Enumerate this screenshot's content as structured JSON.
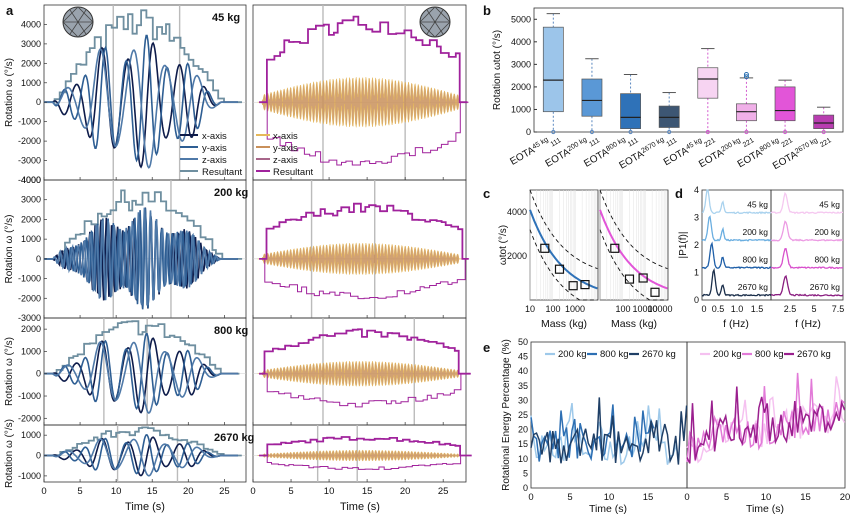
{
  "colors": {
    "x_axis": "#0d1b4a",
    "y_axis": "#2e5e93",
    "z_axis": "#4f79a8",
    "resultant": "#6f8fa0",
    "mx": "#e6b85a",
    "my": "#c9905a",
    "mz": "#a8668a",
    "mres": "#a0229c",
    "blue_box": [
      "#9cc5ea",
      "#5a98d6",
      "#2f72b8",
      "#3d5673"
    ],
    "pink_box": [
      "#f7d4f2",
      "#f0b0e8",
      "#e255d8",
      "#b83db0"
    ],
    "e_left": [
      "#9ec9ea",
      "#2d6fb3",
      "#1f3f66"
    ],
    "e_right": [
      "#f5c1f0",
      "#e27ad8",
      "#9a1f8e"
    ]
  },
  "panels": {
    "a": {
      "letter": "a",
      "masses": [
        "45 kg",
        "200 kg",
        "800 kg",
        "2670 kg"
      ],
      "ylabel": "Rotation ω (°/s)",
      "xlabel": "Time (s)"
    },
    "b": {
      "letter": "b",
      "ylabel": "Rotation ωtot (°/s)"
    },
    "c": {
      "letter": "c",
      "ylabel": "ωtot (°/s)",
      "xlabel": "Mass (kg)"
    },
    "d": {
      "letter": "d",
      "ylabel": "|P1(f)|",
      "xlabel": "f (Hz)"
    },
    "e": {
      "letter": "e",
      "ylabel": "Rotational Energy Percentage (%)",
      "xlabel": "Time (s)"
    }
  },
  "legend_a_left": [
    "x-axis",
    "y-axis",
    "z-axis",
    "Resultant"
  ],
  "legend_a_right": [
    "x-axis",
    "y-axis",
    "z-axis",
    "Resultant"
  ],
  "legend_e": [
    "200 kg",
    "800 kg",
    "2670 kg"
  ],
  "chart_data": [
    {
      "id": "a-time-series",
      "type": "line",
      "xlim": [
        0,
        28
      ],
      "x_ticks": [
        0,
        5,
        10,
        15,
        20,
        25
      ],
      "rows": [
        {
          "mass": "45 kg",
          "ylim": [
            -4000,
            5000
          ],
          "y_ticks": [
            -4000,
            -3000,
            -2000,
            -1000,
            0,
            1000,
            2000,
            3000,
            4000
          ],
          "left_vlines": [
            9.6,
            18.8
          ],
          "right_vlines": [
            9.2,
            20
          ],
          "peak_resultant_left": 4400,
          "peak_resultant_right": 4300
        },
        {
          "mass": "200 kg",
          "ylim": [
            -3000,
            4000
          ],
          "y_ticks": [
            -3000,
            -2000,
            -1000,
            0,
            1000,
            2000,
            3000,
            4000
          ],
          "left_vlines": [
            9.6,
            17.6
          ],
          "right_vlines": [
            7.7,
            16
          ],
          "peak_resultant_left": 3300,
          "peak_resultant_right": 2700
        },
        {
          "mass": "800 kg",
          "ylim": [
            -2300,
            2500
          ],
          "y_ticks": [
            -2000,
            -1000,
            0,
            1000,
            2000
          ],
          "left_vlines": [
            8.3,
            14.3
          ],
          "right_vlines": [
            9.2,
            21.2
          ],
          "peak_resultant_left": 2300,
          "peak_resultant_right": 1900
        },
        {
          "mass": "2670 kg",
          "ylim": [
            -1300,
            1500
          ],
          "y_ticks": [
            -1000,
            0,
            1000
          ],
          "left_vlines": [
            10.2,
            18.5
          ],
          "right_vlines": [
            8.5,
            13.7
          ],
          "peak_resultant_left": 1300,
          "peak_resultant_right": 900
        }
      ]
    },
    {
      "id": "b-boxplot",
      "type": "box",
      "ylim": [
        0,
        5500
      ],
      "y_ticks": [
        0,
        1000,
        2000,
        3000,
        4000,
        5000
      ],
      "categories": [
        "EOTA 45 kg 111",
        "EOTA 200 kg 111",
        "EOTA 800 kg 111",
        "EOTA 2670 kg 111",
        "EOTA 45 kg 221",
        "EOTA 200 kg 221",
        "EOTA 800 kg 221",
        "EOTA 2670 kg 221"
      ],
      "tick_base": "EOTA",
      "tick_sups": [
        "45 kg",
        "200 kg",
        "800 kg",
        "2670 kg",
        "45 kg",
        "200 kg",
        "800 kg",
        "2670 kg"
      ],
      "tick_subs": [
        "111",
        "111",
        "111",
        "111",
        "221",
        "221",
        "221",
        "221"
      ],
      "boxes": [
        {
          "min": 0,
          "q1": 900,
          "median": 2300,
          "q3": 4650,
          "max": 5250
        },
        {
          "min": 0,
          "q1": 700,
          "median": 1400,
          "q3": 2350,
          "max": 3250
        },
        {
          "min": 0,
          "q1": 150,
          "median": 650,
          "q3": 1700,
          "max": 2550
        },
        {
          "min": 0,
          "q1": 200,
          "median": 650,
          "q3": 1150,
          "max": 1750
        },
        {
          "min": 0,
          "q1": 1500,
          "median": 2350,
          "q3": 2850,
          "max": 3700
        },
        {
          "min": 0,
          "q1": 500,
          "median": 900,
          "q3": 1250,
          "max": 2400,
          "outliers": [
            2450,
            2550
          ]
        },
        {
          "min": 0,
          "q1": 500,
          "median": 950,
          "q3": 2000,
          "max": 2300
        },
        {
          "min": 0,
          "q1": 150,
          "median": 400,
          "q3": 750,
          "max": 1100
        }
      ]
    },
    {
      "id": "c-mass-fit",
      "type": "scatter",
      "x_scale": "log",
      "ylim": [
        0,
        5000
      ],
      "y_ticks": [
        2000,
        4000
      ],
      "left": {
        "xlim": [
          10,
          10000
        ],
        "x_ticks": [
          "10",
          "100",
          "1000"
        ],
        "points": [
          {
            "x": 45,
            "y": 2350
          },
          {
            "x": 200,
            "y": 1400
          },
          {
            "x": 800,
            "y": 650
          },
          {
            "x": 2670,
            "y": 700
          }
        ]
      },
      "right": {
        "xlim": [
          10,
          10000
        ],
        "x_ticks": [
          "100",
          "10000",
          "10000"
        ],
        "points": [
          {
            "x": 45,
            "y": 2350
          },
          {
            "x": 200,
            "y": 950
          },
          {
            "x": 800,
            "y": 1000
          },
          {
            "x": 2670,
            "y": 350
          }
        ]
      }
    },
    {
      "id": "d-spectrum",
      "type": "line",
      "ylim": [
        0,
        4
      ],
      "y_ticks": [
        0,
        1,
        2,
        3,
        4
      ],
      "left_x_ticks": [
        "0",
        "0.5",
        "1.0",
        "1.5"
      ],
      "right_x_ticks": [
        "2.5",
        "5",
        "7.5"
      ],
      "labels": [
        "45 kg",
        "200 kg",
        "800 kg",
        "2670 kg"
      ]
    },
    {
      "id": "e-energy",
      "type": "line",
      "ylim": [
        0,
        50
      ],
      "y_ticks": [
        0,
        5,
        10,
        15,
        20,
        25,
        30,
        35,
        40,
        45,
        50
      ],
      "left_xlim": [
        0,
        20
      ],
      "left_x_ticks": [
        0,
        5,
        10,
        15
      ],
      "right_xlim": [
        0,
        20
      ],
      "right_x_ticks": [
        0,
        5,
        10,
        15,
        20
      ]
    }
  ]
}
